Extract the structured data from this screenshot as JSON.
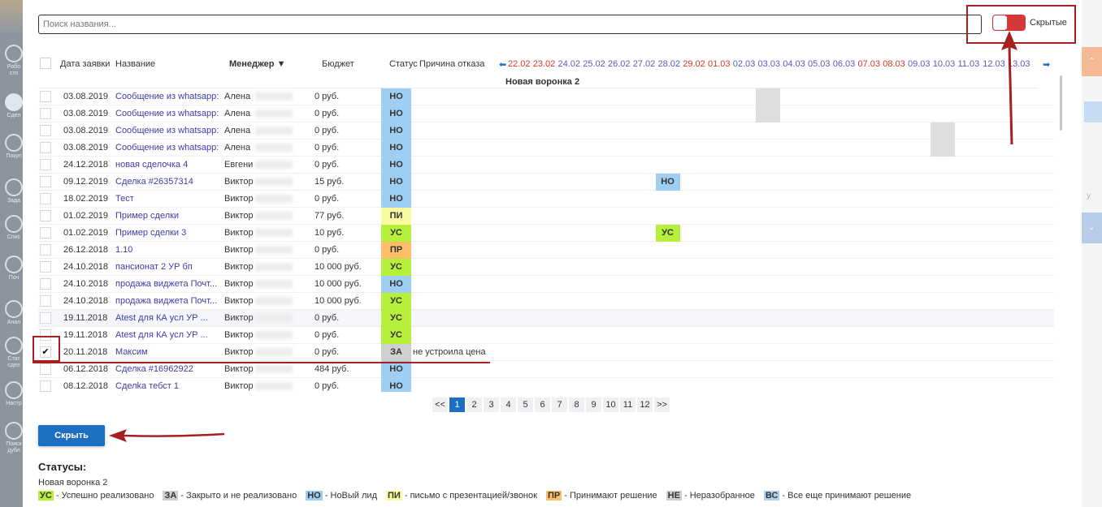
{
  "backdrop": {
    "sidebar": [
      {
        "label": "Рабо\nсто",
        "active": false
      },
      {
        "label": "Сдел",
        "active": true
      },
      {
        "label": "Покуп",
        "active": false
      },
      {
        "label": "Зада",
        "active": false
      },
      {
        "label": "Спис",
        "active": false
      },
      {
        "label": "Поч",
        "active": false
      },
      {
        "label": "Анал",
        "active": false
      },
      {
        "label": "Стат\nсдел",
        "active": false
      },
      {
        "label": "Настр",
        "active": false
      },
      {
        "label": "Поиск\nдубл",
        "active": false
      }
    ],
    "right_text": "у"
  },
  "search": {
    "placeholder": "Поиск названия..."
  },
  "toggle": {
    "label": "Скрытые",
    "on": true
  },
  "columns": {
    "date": "Дата заявки",
    "name": "Название",
    "manager": "Менеджер ▼",
    "budget": "Бюджет",
    "status": "Статус",
    "reason": "Причина отказа"
  },
  "timeline": {
    "prev": "⬅",
    "next": "➡",
    "dates": [
      {
        "d": "22.02",
        "weekend": true
      },
      {
        "d": "23.02",
        "weekend": true
      },
      {
        "d": "24.02",
        "weekend": false
      },
      {
        "d": "25.02",
        "weekend": false
      },
      {
        "d": "26.02",
        "weekend": false
      },
      {
        "d": "27.02",
        "weekend": false
      },
      {
        "d": "28.02",
        "weekend": false
      },
      {
        "d": "29.02",
        "weekend": true
      },
      {
        "d": "01.03",
        "weekend": true
      },
      {
        "d": "02.03",
        "weekend": false
      },
      {
        "d": "03.03",
        "weekend": false
      },
      {
        "d": "04.03",
        "weekend": false
      },
      {
        "d": "05.03",
        "weekend": false
      },
      {
        "d": "06.03",
        "weekend": false
      },
      {
        "d": "07.03",
        "weekend": true
      },
      {
        "d": "08.03",
        "weekend": true
      },
      {
        "d": "09.03",
        "weekend": false
      },
      {
        "d": "10.03",
        "weekend": false
      },
      {
        "d": "11.03",
        "weekend": false
      },
      {
        "d": "12.03",
        "weekend": false
      },
      {
        "d": "13.03",
        "weekend": false
      }
    ]
  },
  "pipeline": "Новая воронка 2",
  "rows": [
    {
      "date": "03.08.2019",
      "name": "Сообщение из whatsapp: ...",
      "manager": "Алена",
      "budget": "0 руб.",
      "status": "НО",
      "reason": "",
      "checked": false,
      "highlight": false,
      "cells": [
        {
          "col": 10,
          "text": ""
        }
      ]
    },
    {
      "date": "03.08.2019",
      "name": "Сообщение из whatsapp: ...",
      "manager": "Алена",
      "budget": "0 руб.",
      "status": "НО",
      "reason": "",
      "checked": false,
      "highlight": false,
      "cells": [
        {
          "col": 10,
          "text": ""
        }
      ]
    },
    {
      "date": "03.08.2019",
      "name": "Сообщение из whatsapp: ...",
      "manager": "Алена",
      "budget": "0 руб.",
      "status": "НО",
      "reason": "",
      "checked": false,
      "highlight": false,
      "cells": [
        {
          "col": 17,
          "text": ""
        }
      ]
    },
    {
      "date": "03.08.2019",
      "name": "Сообщение из whatsapp: ...",
      "manager": "Алена",
      "budget": "0 руб.",
      "status": "НО",
      "reason": "",
      "checked": false,
      "highlight": false,
      "cells": [
        {
          "col": 17,
          "text": ""
        }
      ]
    },
    {
      "date": "24.12.2018",
      "name": "новая сделочка 4",
      "manager": "Евгений",
      "budget": "0 руб.",
      "status": "НО",
      "reason": "",
      "checked": false,
      "highlight": false,
      "cells": []
    },
    {
      "date": "09.12.2019",
      "name": "Сделка #26357314",
      "manager": "Виктор",
      "budget": "15 руб.",
      "status": "НО",
      "reason": "",
      "checked": false,
      "highlight": false,
      "cells": [
        {
          "col": 6,
          "text": "НО"
        }
      ]
    },
    {
      "date": "18.02.2019",
      "name": "Тест",
      "manager": "Виктор",
      "budget": "0 руб.",
      "status": "НО",
      "reason": "",
      "checked": false,
      "highlight": false,
      "cells": []
    },
    {
      "date": "01.02.2019",
      "name": "Пример сделки",
      "manager": "Виктор",
      "budget": "77 руб.",
      "status": "ПИ",
      "reason": "",
      "checked": false,
      "highlight": false,
      "cells": []
    },
    {
      "date": "01.02.2019",
      "name": "Пример сделки 3",
      "manager": "Виктор",
      "budget": "10 руб.",
      "status": "УС",
      "reason": "",
      "checked": false,
      "highlight": false,
      "cells": [
        {
          "col": 6,
          "text": "УС"
        }
      ]
    },
    {
      "date": "26.12.2018",
      "name": "1.10",
      "manager": "Виктор",
      "budget": "0 руб.",
      "status": "ПР",
      "reason": "",
      "checked": false,
      "highlight": false,
      "cells": []
    },
    {
      "date": "24.10.2018",
      "name": "пансионат 2 УР бп",
      "manager": "Виктор",
      "budget": "10 000 руб.",
      "status": "УС",
      "reason": "",
      "checked": false,
      "highlight": false,
      "cells": []
    },
    {
      "date": "24.10.2018",
      "name": "продажа виджета Почт...",
      "manager": "Виктор",
      "budget": "10 000 руб.",
      "status": "НО",
      "reason": "",
      "checked": false,
      "highlight": false,
      "cells": []
    },
    {
      "date": "24.10.2018",
      "name": "продажа виджета Почт...",
      "manager": "Виктор",
      "budget": "10 000 руб.",
      "status": "УС",
      "reason": "",
      "checked": false,
      "highlight": false,
      "cells": []
    },
    {
      "date": "19.11.2018",
      "name": "Atest для КА усл УР ...",
      "manager": "Виктор",
      "budget": "0 руб.",
      "status": "УС",
      "reason": "",
      "checked": false,
      "highlight": true,
      "cells": []
    },
    {
      "date": "19.11.2018",
      "name": "Atest для КА усл УР ...",
      "manager": "Виктор",
      "budget": "0 руб.",
      "status": "УС",
      "reason": "",
      "checked": false,
      "highlight": false,
      "cells": []
    },
    {
      "date": "20.11.2018",
      "name": "Максим",
      "manager": "Виктор",
      "budget": "0 руб.",
      "status": "ЗА",
      "reason": "не устроила цена",
      "checked": true,
      "highlight": false,
      "cells": []
    },
    {
      "date": "06.12.2018",
      "name": "Сделка #16962922",
      "manager": "Виктор",
      "budget": "484 руб.",
      "status": "НО",
      "reason": "",
      "checked": false,
      "highlight": false,
      "cells": []
    },
    {
      "date": "08.12.2018",
      "name": "Сделkа тебст 1",
      "manager": "Виктор",
      "budget": "0 руб.",
      "status": "НО",
      "reason": "",
      "checked": false,
      "highlight": false,
      "cells": []
    }
  ],
  "pagination": {
    "first": "<<",
    "pages": [
      "1",
      "2",
      "3",
      "4",
      "5",
      "6",
      "7",
      "8",
      "9",
      "10",
      "11",
      "12"
    ],
    "last": ">>",
    "current": "1"
  },
  "hide_button": "Скрыть",
  "legend": {
    "title": "Статусы:",
    "pipeline": "Новая воронка 2",
    "items": [
      {
        "code": "УС",
        "text": " - Успешно реализовано",
        "color": "#b6f03a"
      },
      {
        "code": "ЗА",
        "text": " - Закрыто и не реализовано",
        "color": "#cfcfcf"
      },
      {
        "code": "НО",
        "text": " - НоВый лид",
        "color": "#9ecff2"
      },
      {
        "code": "ПИ",
        "text": " - письмо с презентацией/звонок",
        "color": "#fafaa0"
      },
      {
        "code": "ПР",
        "text": " - Принимают решение",
        "color": "#fdbf6a"
      },
      {
        "code": "НЕ",
        "text": " - Неразобранное",
        "color": "#cfcfcf"
      },
      {
        "code": "ВС",
        "text": " - Все еще принимают решение",
        "color": "#b1d1f0"
      }
    ]
  },
  "colors": {
    "accent": "#1d6fc4",
    "annotation": "#a62022",
    "weekend": "#d9381e",
    "weekday": "#5a5ab5"
  }
}
